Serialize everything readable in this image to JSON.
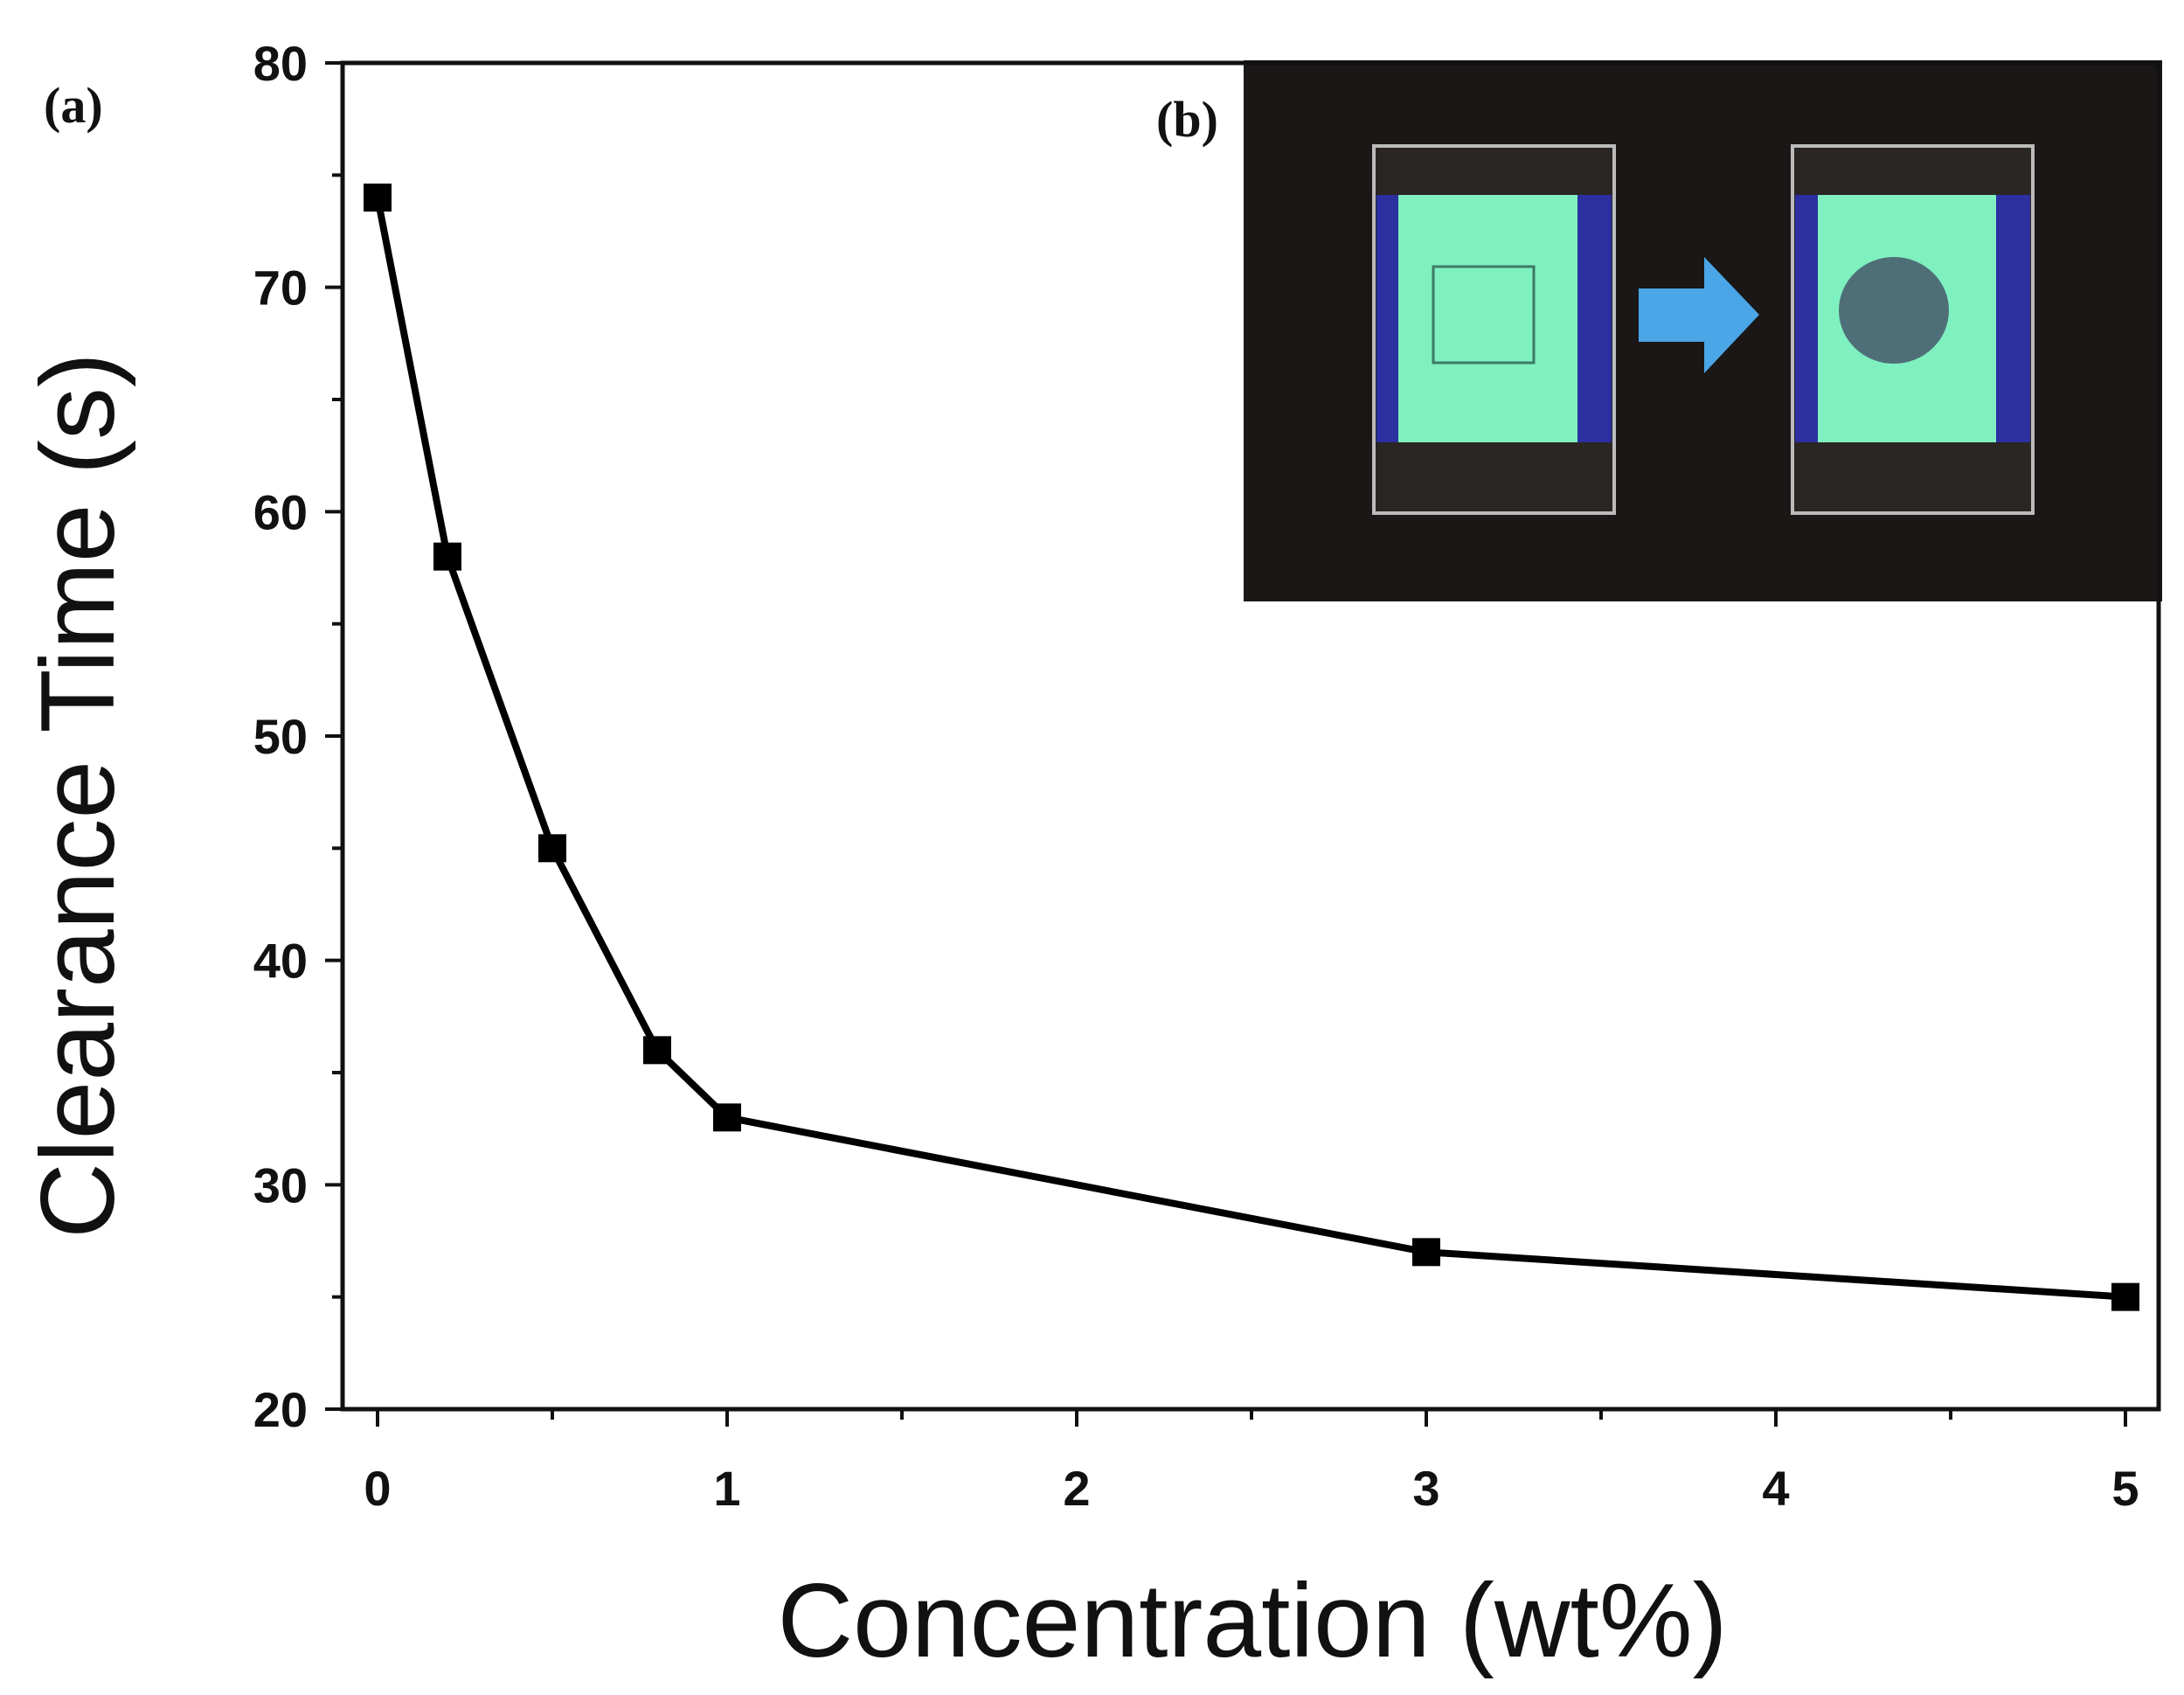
{
  "chart_data": {
    "type": "line",
    "title": "",
    "xlabel": "Concentration (wt%)",
    "ylabel": "Clearance Time (s)",
    "x": [
      0,
      0.2,
      0.5,
      0.8,
      1,
      3,
      5
    ],
    "series": [
      {
        "name": "Clearance Time",
        "values": [
          74,
          58,
          45,
          36,
          33,
          27,
          25
        ],
        "marker": "square",
        "color": "#000000"
      }
    ],
    "xlim": [
      -0.1,
      5.1
    ],
    "ylim": [
      20,
      80
    ],
    "xticks": [
      "0",
      "1",
      "2",
      "3",
      "4",
      "5"
    ],
    "yticks": [
      "20",
      "30",
      "40",
      "50",
      "60",
      "70",
      "80"
    ],
    "grid": false,
    "legend": "none",
    "panel_labels": [
      "(a)",
      "(b)"
    ]
  },
  "inset": {
    "description_colors": {
      "background": "#1a1716",
      "film": "#7ff0c0",
      "tape": "#2b2fa0",
      "arrow": "#4aa6e6",
      "spot": "#4f6f78"
    }
  }
}
